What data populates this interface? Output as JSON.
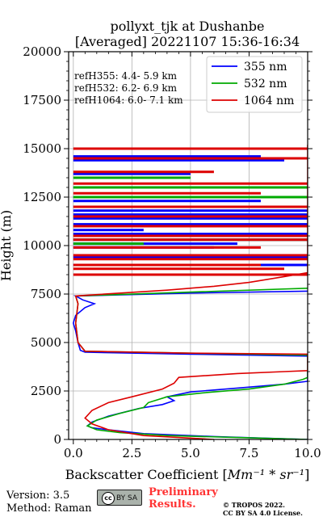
{
  "chart_data": {
    "type": "line",
    "title_line1": "pollyxt_tjk at Dushanbe",
    "title_line2": "[Averaged] 20221107 15:36-16:34",
    "xlabel_prefix": "Backscatter Coefficient [",
    "xlabel_math": "Mm⁻¹ * sr⁻¹",
    "xlabel_suffix": "]",
    "ylabel": "Height (m)",
    "xlim": [
      -0.2,
      10.0
    ],
    "ylim": [
      0,
      20000
    ],
    "xticks": [
      0.0,
      2.5,
      5.0,
      7.5,
      10.0
    ],
    "xtick_labels": [
      "0.0",
      "2.5",
      "5.0",
      "7.5",
      "10.0"
    ],
    "yticks": [
      0,
      2500,
      5000,
      7500,
      10000,
      12500,
      15000,
      17500,
      20000
    ],
    "ytick_labels": [
      "0",
      "2500",
      "5000",
      "7500",
      "10000",
      "12500",
      "15000",
      "17500",
      "20000"
    ],
    "grid": true,
    "legend_position": "top-right",
    "ref_heights": [
      "refH355:  4.4- 5.9 km",
      "refH532:  6.2- 6.9 km",
      "refH1064:  6.0- 7.1 km"
    ],
    "series": [
      {
        "name": "355 nm",
        "color": "#0000ff",
        "points": [
          [
            10.0,
            0
          ],
          [
            6.0,
            150
          ],
          [
            3.0,
            300
          ],
          [
            1.5,
            500
          ],
          [
            0.8,
            600
          ],
          [
            0.6,
            700
          ],
          [
            0.8,
            900
          ],
          [
            1.5,
            1200
          ],
          [
            2.8,
            1600
          ],
          [
            3.8,
            1800
          ],
          [
            4.3,
            2000
          ],
          [
            4.0,
            2200
          ],
          [
            5.0,
            2450
          ],
          [
            7.0,
            2650
          ],
          [
            9.0,
            2850
          ],
          [
            10.0,
            3000
          ],
          [
            10.0,
            4300
          ],
          [
            5.0,
            4400
          ],
          [
            0.5,
            4500
          ],
          [
            0.3,
            4600
          ],
          [
            0.2,
            5000
          ],
          [
            0.1,
            5600
          ],
          [
            0.0,
            6000
          ],
          [
            0.1,
            6400
          ],
          [
            0.5,
            6800
          ],
          [
            0.9,
            7000
          ],
          [
            0.4,
            7200
          ],
          [
            0.1,
            7400
          ],
          [
            5.0,
            7550
          ],
          [
            10.0,
            7650
          ]
        ],
        "spikes": [
          [
            9000,
            10.0
          ],
          [
            9400,
            10.0
          ],
          [
            9900,
            6.0
          ],
          [
            10100,
            7.0
          ],
          [
            10300,
            10.0
          ],
          [
            10600,
            10.0
          ],
          [
            10800,
            3.0
          ],
          [
            11100,
            10.0
          ],
          [
            11400,
            10.0
          ],
          [
            11600,
            10.0
          ],
          [
            11800,
            10.0
          ],
          [
            12000,
            10.0
          ],
          [
            12300,
            8.0
          ],
          [
            12500,
            5.0
          ],
          [
            13000,
            10.0
          ],
          [
            13700,
            5.0
          ],
          [
            14400,
            9.0
          ],
          [
            14600,
            8.0
          ]
        ]
      },
      {
        "name": "532 nm",
        "color": "#00aa00",
        "points": [
          [
            10.0,
            0
          ],
          [
            7.0,
            100
          ],
          [
            4.0,
            200
          ],
          [
            2.0,
            350
          ],
          [
            1.0,
            500
          ],
          [
            0.6,
            700
          ],
          [
            1.0,
            1000
          ],
          [
            2.0,
            1350
          ],
          [
            3.0,
            1650
          ],
          [
            3.2,
            1900
          ],
          [
            4.0,
            2200
          ],
          [
            5.5,
            2400
          ],
          [
            7.5,
            2600
          ],
          [
            9.0,
            2850
          ],
          [
            9.8,
            3100
          ],
          [
            10.0,
            3200
          ],
          [
            10.0,
            4350
          ],
          [
            5.0,
            4450
          ],
          [
            0.5,
            4550
          ],
          [
            0.2,
            5000
          ],
          [
            0.1,
            6000
          ],
          [
            0.2,
            7000
          ],
          [
            0.1,
            7400
          ],
          [
            5.0,
            7600
          ],
          [
            10.0,
            7800
          ]
        ],
        "spikes": [
          [
            10100,
            3.0
          ],
          [
            10300,
            10.0
          ],
          [
            10500,
            10.0
          ],
          [
            11000,
            10.0
          ],
          [
            11500,
            10.0
          ],
          [
            12500,
            10.0
          ],
          [
            13000,
            10.0
          ],
          [
            13500,
            5.0
          ]
        ]
      },
      {
        "name": "1064 nm",
        "color": "#dd0000",
        "points": [
          [
            6.0,
            0
          ],
          [
            3.0,
            200
          ],
          [
            1.5,
            500
          ],
          [
            0.8,
            800
          ],
          [
            0.5,
            1100
          ],
          [
            0.8,
            1500
          ],
          [
            1.5,
            1900
          ],
          [
            2.5,
            2200
          ],
          [
            3.8,
            2600
          ],
          [
            4.3,
            2900
          ],
          [
            4.5,
            3200
          ],
          [
            7.0,
            3400
          ],
          [
            9.0,
            3500
          ],
          [
            10.0,
            3550
          ],
          [
            10.0,
            4400
          ],
          [
            5.0,
            4450
          ],
          [
            0.5,
            4550
          ],
          [
            0.2,
            5000
          ],
          [
            0.1,
            6000
          ],
          [
            0.2,
            7000
          ],
          [
            0.1,
            7400
          ],
          [
            2.0,
            7550
          ],
          [
            4.0,
            7700
          ],
          [
            6.0,
            7900
          ],
          [
            7.5,
            8100
          ],
          [
            9.0,
            8400
          ],
          [
            10.0,
            8600
          ],
          [
            10.0,
            15200
          ]
        ],
        "spikes": [
          [
            8500,
            10.0
          ],
          [
            8800,
            9.0
          ],
          [
            9000,
            8.0
          ],
          [
            9300,
            10.0
          ],
          [
            9500,
            10.0
          ],
          [
            9900,
            8.0
          ],
          [
            10300,
            10.0
          ],
          [
            10500,
            10.0
          ],
          [
            11000,
            10.0
          ],
          [
            11500,
            10.0
          ],
          [
            12000,
            10.0
          ],
          [
            12700,
            8.0
          ],
          [
            13200,
            10.0
          ],
          [
            13800,
            6.0
          ],
          [
            14500,
            10.0
          ],
          [
            15000,
            10.0
          ]
        ]
      }
    ]
  },
  "footer": {
    "version": "Version: 3.5",
    "method": "Method: Raman",
    "preliminary_line1": "Preliminary",
    "preliminary_line2": "Results.",
    "copyright_line1": "© TROPOS 2022.",
    "copyright_line2": "CC BY SA 4.0 License.",
    "cc_badge_text": "BY SA"
  }
}
